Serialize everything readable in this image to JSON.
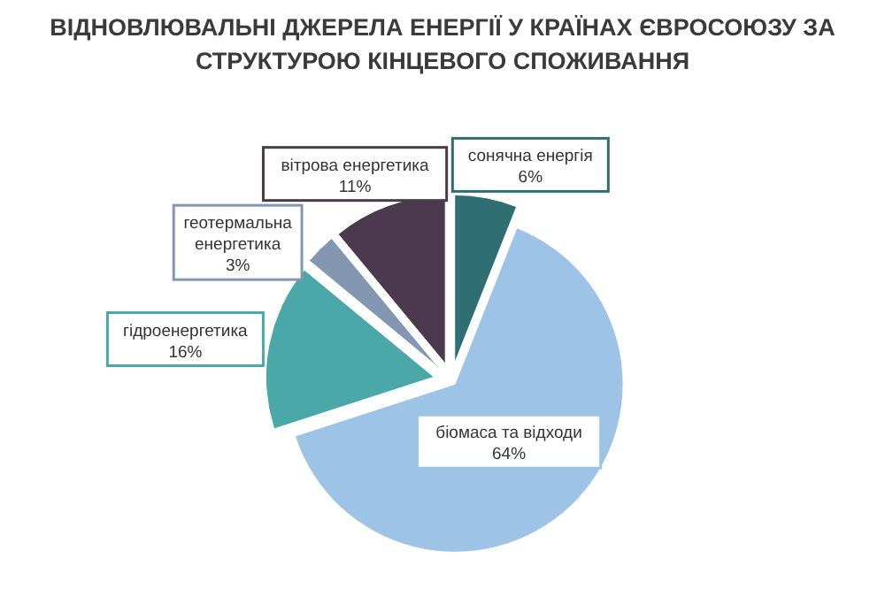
{
  "chart_data": {
    "type": "pie",
    "title": "ВІДНОВЛЮВАЛЬНІ ДЖЕРЕЛА ЕНЕРГІЇ У КРАЇНАХ ЄВРОСОЮЗУ ЗА СТРУКТУРОЮ КІНЦЕВОГО СПОЖИВАННЯ",
    "categories": [
      "сонячна енергія",
      "біомаса та відходи",
      "гідроенергетика",
      "геотермальна енергетика",
      "вітрова енергетика"
    ],
    "values": [
      6,
      64,
      16,
      3,
      11
    ],
    "value_labels": [
      "6%",
      "64%",
      "16%",
      "3%",
      "11%"
    ],
    "colors": [
      "#2f6f73",
      "#9dc3e6",
      "#4aa8a8",
      "#8497b0",
      "#4b3a4e"
    ]
  }
}
